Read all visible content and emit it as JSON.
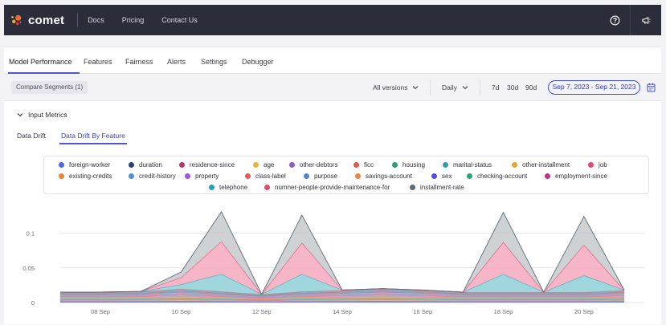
{
  "header": {
    "logo_text": "comet",
    "nav": [
      "Docs",
      "Pricing",
      "Contact Us"
    ],
    "icons": [
      "help-icon",
      "announcement-icon"
    ]
  },
  "tabs": [
    "Model Performance",
    "Features",
    "Fairness",
    "Alerts",
    "Settings",
    "Debugger"
  ],
  "filters": {
    "compare": "Compare Segments (1)",
    "versions": "All versions",
    "interval": "Daily",
    "quick_ranges": [
      "7d",
      "30d",
      "90d"
    ],
    "date_range": "Sep 7, 2023 - Sep 21, 2023"
  },
  "section": {
    "title": "Input Metrics",
    "subtabs": [
      "Data Drift",
      "Data Drift By Feature"
    ]
  },
  "colors": {
    "accent": "#4a57d6",
    "topbar": "#2b2d3a"
  },
  "legend": [
    {
      "name": "foreign-worker",
      "color": "#5468e6"
    },
    {
      "name": "duration",
      "color": "#2c4468"
    },
    {
      "name": "residence-since",
      "color": "#b2347a"
    },
    {
      "name": "age",
      "color": "#e8b23a"
    },
    {
      "name": "other-debtors",
      "color": "#8a5cc9"
    },
    {
      "name": "ficc",
      "color": "#e2564e"
    },
    {
      "name": "housing",
      "color": "#2e9c78"
    },
    {
      "name": "marital-status",
      "color": "#2e9fb5"
    },
    {
      "name": "other-installment",
      "color": "#e8a32c"
    },
    {
      "name": "job",
      "color": "#e6466e"
    },
    {
      "name": "existing-credits",
      "color": "#e8863a"
    },
    {
      "name": "credit-history",
      "color": "#4e8ed0"
    },
    {
      "name": "property",
      "color": "#9b5bd0"
    },
    {
      "name": "class-label",
      "color": "#e35a5a"
    },
    {
      "name": "purpose",
      "color": "#5a7fe0"
    },
    {
      "name": "savings-account",
      "color": "#e8893c"
    },
    {
      "name": "sex",
      "color": "#4f4ee0"
    },
    {
      "name": "checking-account",
      "color": "#2ea46e"
    },
    {
      "name": "employment-since",
      "color": "#b33a86"
    },
    {
      "name": "telephone",
      "color": "#2aa3ad"
    },
    {
      "name": "numner-people-provide-maintenance-for",
      "color": "#e6486c"
    },
    {
      "name": "installment-rate",
      "color": "#5b6b78"
    }
  ],
  "chart_data": {
    "type": "area",
    "stacked": true,
    "x": [
      "Sep 7",
      "Sep 8",
      "Sep 9",
      "Sep 10",
      "Sep 11",
      "Sep 12",
      "Sep 13",
      "Sep 14",
      "Sep 15",
      "Sep 16",
      "Sep 17",
      "Sep 18",
      "Sep 19",
      "Sep 20",
      "Sep 21"
    ],
    "xtick_labels": [
      "08 Sep",
      "10 Sep",
      "12 Sep",
      "14 Sep",
      "16 Sep",
      "18 Sep",
      "20 Sep"
    ],
    "xtick_index": [
      1,
      3,
      5,
      7,
      9,
      11,
      13
    ],
    "yticks": [
      0,
      0.05,
      0.1
    ],
    "ytick_labels": [
      "0",
      "0.05",
      "0.1"
    ],
    "ylim": [
      0,
      0.14
    ],
    "grid": true,
    "base_total": [
      0.015,
      0.015,
      0.016,
      0.02,
      0.016,
      0.012,
      0.016,
      0.018,
      0.02,
      0.018,
      0.015,
      0.015,
      0.015,
      0.015,
      0.018
    ],
    "series": [
      {
        "name": "marital-status",
        "color": "#8fd0d8",
        "values": [
          0,
          0,
          0,
          0.006,
          0.025,
          0,
          0.025,
          0,
          0,
          0,
          0,
          0.026,
          0,
          0.024,
          0
        ]
      },
      {
        "name": "job",
        "color": "#f4a9bd",
        "values": [
          0,
          0,
          0,
          0.01,
          0.047,
          0,
          0.045,
          0,
          0,
          0,
          0,
          0.046,
          0,
          0.044,
          0
        ]
      },
      {
        "name": "installment-rate",
        "color": "#c6cacd",
        "values": [
          0,
          0,
          0,
          0.008,
          0.043,
          0,
          0.04,
          0,
          0,
          0,
          0,
          0.043,
          0,
          0.041,
          0
        ]
      }
    ]
  }
}
